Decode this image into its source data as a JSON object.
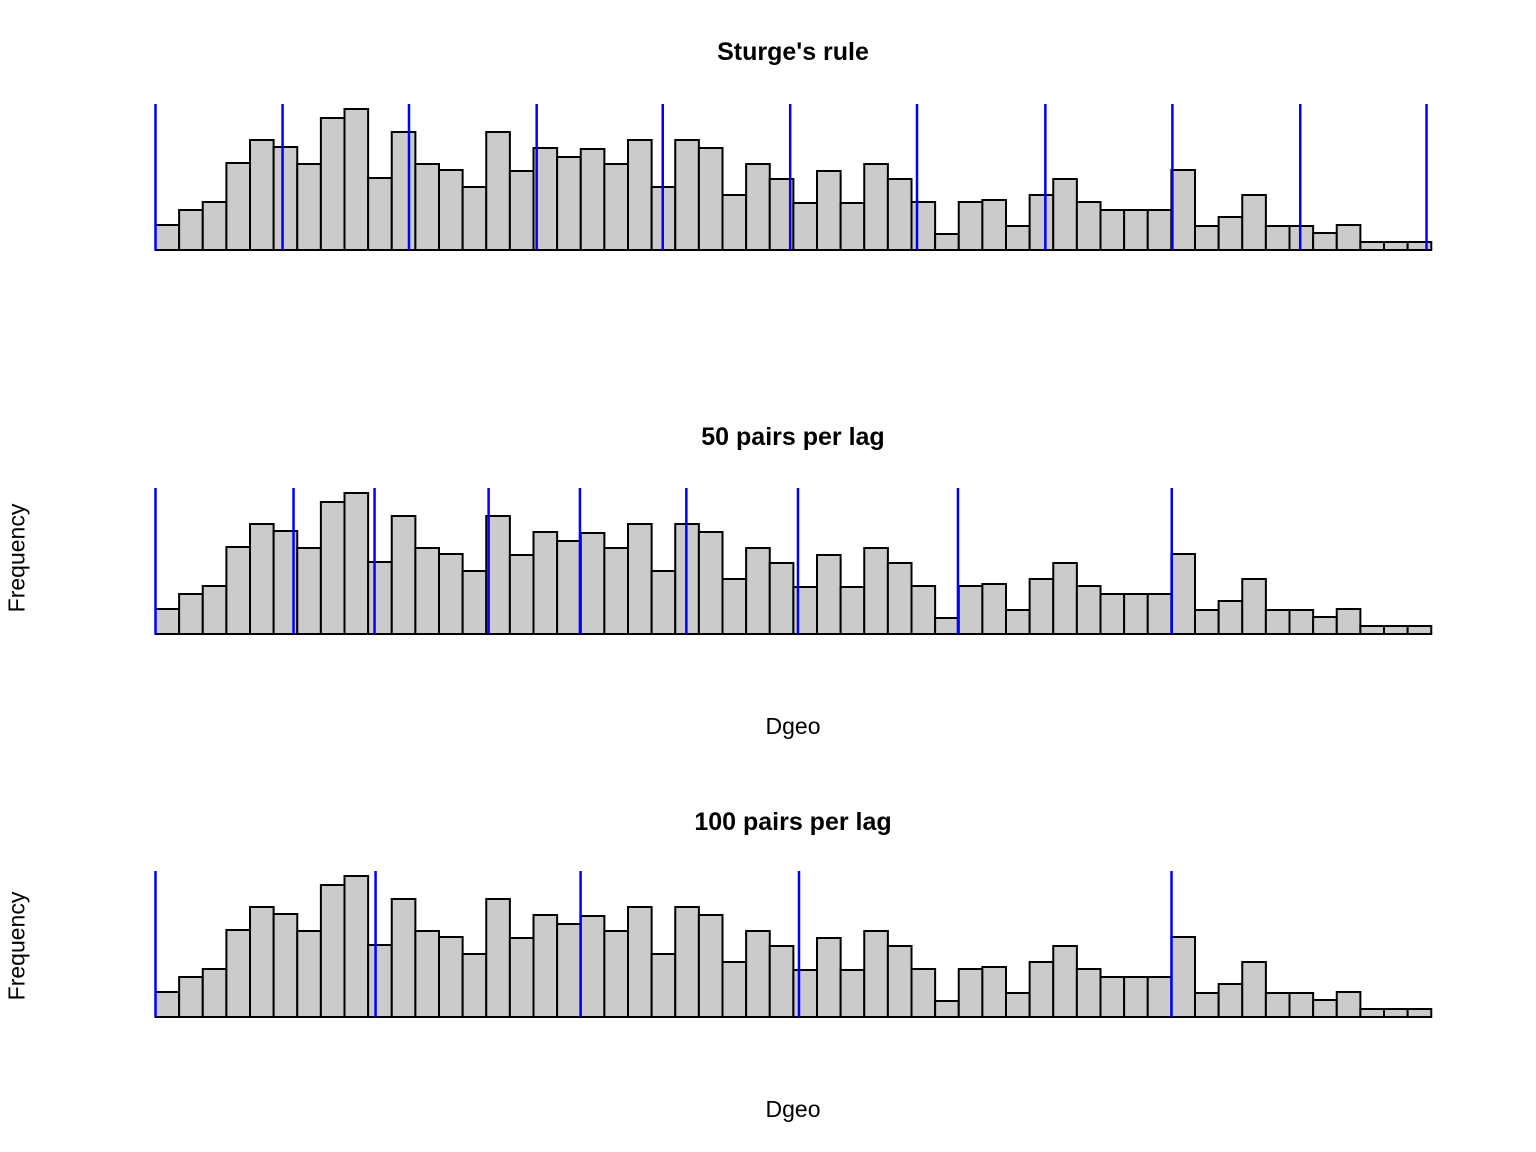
{
  "figure": {
    "background": "#ffffff",
    "text_color": "#000000"
  },
  "styles": {
    "bar_fill": "#cbcbcb",
    "bar_stroke": "#000000",
    "bar_stroke_width": 2,
    "lag_line_color": "#0000ff",
    "lag_line_width": 2.5
  },
  "chart_data": [
    {
      "type": "bar",
      "subtype": "histogram",
      "title": "Sturge's rule",
      "xlabel": "",
      "ylabel": "",
      "grid": false,
      "legend": "none",
      "n_bins": 54,
      "y_units": "Frequency (no axis ticks shown; values are relative estimates)",
      "values": [
        25,
        40,
        48,
        87,
        110,
        103,
        86,
        132,
        141,
        72,
        118,
        86,
        80,
        63,
        118,
        79,
        102,
        93,
        101,
        86,
        110,
        63,
        110,
        102,
        55,
        86,
        71,
        47,
        79,
        47,
        86,
        71,
        48,
        16,
        48,
        50,
        24,
        55,
        71,
        48,
        40,
        40,
        40,
        80,
        24,
        33,
        55,
        24,
        24,
        17,
        25,
        8,
        8,
        8
      ],
      "ymax": 146,
      "lag_boundary_count": 11,
      "lag_boundaries_frac": [
        0,
        0.0996,
        0.1987,
        0.2988,
        0.3976,
        0.4975,
        0.5969,
        0.6975,
        0.7971,
        0.8973,
        0.9963
      ]
    },
    {
      "type": "bar",
      "subtype": "histogram",
      "title": "50 pairs per lag",
      "xlabel": "Dgeo",
      "ylabel": "Frequency",
      "grid": false,
      "legend": "none",
      "n_bins": 54,
      "y_units": "Frequency (no axis ticks shown; values are relative estimates)",
      "values": [
        25,
        40,
        48,
        87,
        110,
        103,
        86,
        132,
        141,
        72,
        118,
        86,
        80,
        63,
        118,
        79,
        102,
        93,
        101,
        86,
        110,
        63,
        110,
        102,
        55,
        86,
        71,
        47,
        79,
        47,
        86,
        71,
        48,
        16,
        48,
        50,
        24,
        55,
        71,
        48,
        40,
        40,
        40,
        80,
        24,
        33,
        55,
        24,
        24,
        17,
        25,
        8,
        8,
        8
      ],
      "ymax": 146,
      "lag_boundary_count": 9,
      "lag_boundaries_frac": [
        0,
        0.1082,
        0.1717,
        0.2611,
        0.3327,
        0.4161,
        0.5036,
        0.629,
        0.7966
      ]
    },
    {
      "type": "bar",
      "subtype": "histogram",
      "title": "100 pairs per lag",
      "xlabel": "Dgeo",
      "ylabel": "Frequency",
      "grid": false,
      "legend": "none",
      "n_bins": 54,
      "y_units": "Frequency (no axis ticks shown; values are relative estimates)",
      "values": [
        25,
        40,
        48,
        87,
        110,
        103,
        86,
        132,
        141,
        72,
        118,
        86,
        80,
        63,
        118,
        79,
        102,
        93,
        101,
        86,
        110,
        63,
        110,
        102,
        55,
        86,
        71,
        47,
        79,
        47,
        86,
        71,
        48,
        16,
        48,
        50,
        24,
        55,
        71,
        48,
        40,
        40,
        40,
        80,
        24,
        33,
        55,
        24,
        24,
        17,
        25,
        8,
        8,
        8
      ],
      "ymax": 146,
      "lag_boundary_count": 5,
      "lag_boundaries_frac": [
        0,
        0.1725,
        0.3332,
        0.5044,
        0.7964
      ]
    }
  ]
}
